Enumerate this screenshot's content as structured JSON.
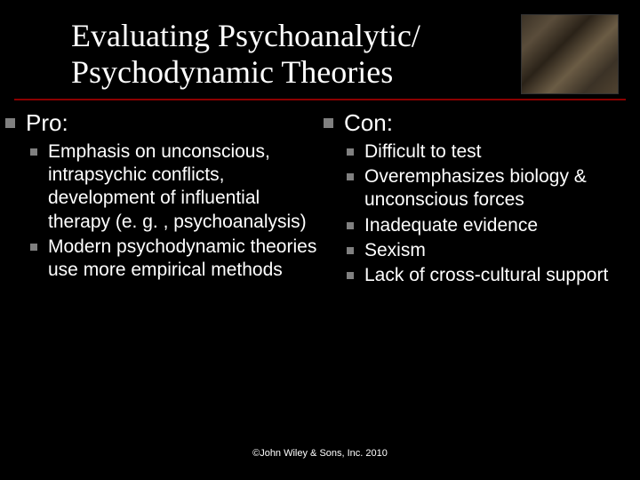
{
  "title_line1": "Evaluating Psychoanalytic/",
  "title_line2": "Psychodynamic Theories",
  "divider_color": "#8B0000",
  "bullet_color": "#808080",
  "background_color": "#000000",
  "text_color": "#ffffff",
  "title_font": "Times New Roman",
  "body_font": "Arial",
  "title_fontsize": 36,
  "section_fontsize": 26,
  "body_fontsize": 21,
  "footer_fontsize": 11,
  "pro": {
    "heading": "Pro:",
    "items": [
      "Emphasis on unconscious, intrapsychic conflicts,  development of influential therapy (e. g. , psychoanalysis)",
      "Modern psychodynamic theories use more empirical methods"
    ]
  },
  "con": {
    "heading": "Con:",
    "items": [
      "Difficult to test",
      "Overemphasizes biology & unconscious forces",
      "Inadequate evidence",
      "Sexism",
      "Lack of cross-cultural support"
    ]
  },
  "footer": "©John Wiley & Sons, Inc. 2010",
  "image_alt": "freud-photo"
}
